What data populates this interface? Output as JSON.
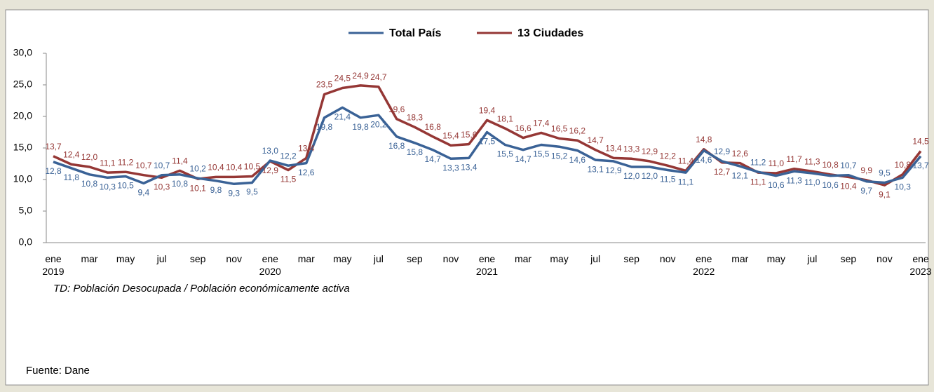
{
  "chart_data": {
    "type": "line",
    "categories": [
      "ene 2019",
      null,
      "mar",
      null,
      "may",
      null,
      "jul",
      null,
      "sep",
      null,
      "nov",
      null,
      "ene 2020",
      null,
      "mar",
      null,
      "may",
      null,
      "jul",
      null,
      "sep",
      null,
      "nov",
      null,
      "ene 2021",
      null,
      "mar",
      null,
      "may",
      null,
      "jul",
      null,
      "sep",
      null,
      "nov",
      null,
      "ene 2022",
      null,
      "mar",
      null,
      "may",
      null,
      "jul",
      null,
      "sep",
      null,
      "nov",
      null,
      "ene 2023"
    ],
    "series": [
      {
        "name": "Total País",
        "color": "#3a6296",
        "values": [
          12.8,
          11.8,
          10.8,
          10.3,
          10.5,
          9.4,
          10.7,
          10.8,
          10.2,
          9.8,
          9.3,
          9.5,
          13.0,
          12.2,
          12.6,
          19.8,
          21.4,
          19.8,
          20.2,
          16.8,
          15.8,
          14.7,
          13.3,
          13.4,
          17.5,
          15.5,
          14.7,
          15.5,
          15.2,
          14.6,
          13.1,
          12.9,
          12.0,
          12.0,
          11.5,
          11.1,
          14.6,
          12.9,
          12.1,
          11.2,
          10.6,
          11.3,
          11.0,
          10.6,
          10.7,
          9.7,
          9.5,
          10.3,
          13.7
        ],
        "value_labels": [
          "12,8",
          "11,8",
          "10,8",
          "10,3",
          "10,5",
          "9,4",
          "10,7",
          "10,8",
          "10,2",
          "9,8",
          "9,3",
          "9,5",
          "13,0",
          "12,2",
          "12,6",
          "19,8",
          "21,4",
          "19,8",
          "20,2",
          "16,8",
          "15,8",
          "14,7",
          "13,3",
          "13,4",
          "17,5",
          "15,5",
          "14,7",
          "15,5",
          "15,2",
          "14,6",
          "13,1",
          "12,9",
          "12,0",
          "12,0",
          "11,5",
          "11,1",
          "14,6",
          "12,9",
          "12,1",
          "11,2",
          "10,6",
          "11,3",
          "11,0",
          "10,6",
          "10,7",
          "9,7",
          "9,5",
          "10,3",
          "13,7"
        ]
      },
      {
        "name": "13 Ciudades",
        "color": "#953735",
        "values": [
          13.7,
          12.4,
          12.0,
          11.1,
          11.2,
          10.7,
          10.3,
          11.4,
          10.1,
          10.4,
          10.4,
          10.5,
          12.9,
          11.5,
          13.4,
          23.5,
          24.5,
          24.9,
          24.7,
          19.6,
          18.3,
          16.8,
          15.4,
          15.6,
          19.4,
          18.1,
          16.6,
          17.4,
          16.5,
          16.2,
          14.7,
          13.4,
          13.3,
          12.9,
          12.2,
          11.4,
          14.8,
          12.7,
          12.6,
          11.1,
          11.0,
          11.7,
          11.3,
          10.8,
          10.4,
          9.9,
          9.1,
          10.8,
          14.5
        ],
        "value_labels": [
          "13,7",
          "12,4",
          "12,0",
          "11,1",
          "11,2",
          "10,7",
          "10,3",
          "11,4",
          "10,1",
          "10,4",
          "10,4",
          "10,5",
          "12,9",
          "11,5",
          "13,4",
          "23,5",
          "24,5",
          "24,9",
          "24,7",
          "19,6",
          "18,3",
          "16,8",
          "15,4",
          "15,6",
          "19,4",
          "18,1",
          "16,6",
          "17,4",
          "16,5",
          "16,2",
          "14,7",
          "13,4",
          "13,3",
          "12,9",
          "12,2",
          "11,4",
          "14,8",
          "12,7",
          "12,6",
          "11,1",
          "11,0",
          "11,7",
          "11,3",
          "10,8",
          "10,4",
          "9,9",
          "9,1",
          "10,8",
          "14,5"
        ]
      }
    ],
    "ylim": [
      0,
      30
    ],
    "yticks": [
      {
        "value": 0,
        "label": "0,0"
      },
      {
        "value": 5,
        "label": "5,0"
      },
      {
        "value": 10,
        "label": "10,0"
      },
      {
        "value": 15,
        "label": "15,0"
      },
      {
        "value": 20,
        "label": "20,0"
      },
      {
        "value": 25,
        "label": "25,0"
      },
      {
        "value": 30,
        "label": "30,0"
      }
    ],
    "grid": false,
    "legend": "top",
    "annotation": "TD: Población  Desocupada / Población económicamente activa",
    "source": "Fuente: Dane"
  }
}
